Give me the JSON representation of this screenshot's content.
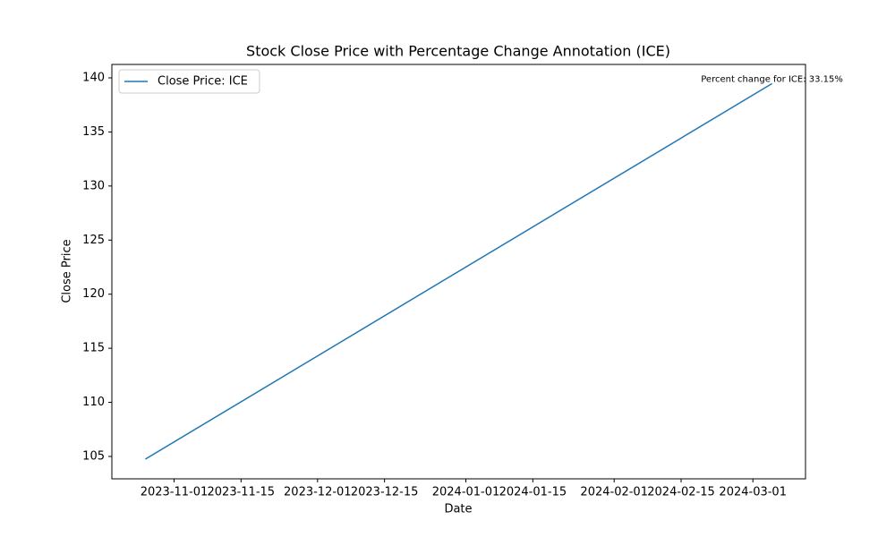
{
  "chart_data": {
    "type": "line",
    "title": "Stock Close Price with Percentage Change Annotation (ICE)",
    "x_label": "Date",
    "y_label": "Close Price",
    "x": [
      "2023-10-26",
      "2024-03-05"
    ],
    "series": [
      {
        "name": "Close Price: ICE",
        "color": "#1f77b4",
        "values": [
          104.75,
          139.47
        ]
      }
    ],
    "xlim": [
      "2023-10-19",
      "2024-03-12"
    ],
    "xticks": [
      "2023-11-01",
      "2023-11-15",
      "2023-12-01",
      "2023-12-15",
      "2024-01-01",
      "2024-01-15",
      "2024-02-01",
      "2024-02-15",
      "2024-03-01"
    ],
    "ylim": [
      102.93,
      141.24
    ],
    "yticks": [
      105,
      110,
      115,
      120,
      125,
      130,
      135,
      140
    ],
    "annotation": "Percent change for ICE: 33.15%",
    "legend": "upper left",
    "grid": false
  }
}
